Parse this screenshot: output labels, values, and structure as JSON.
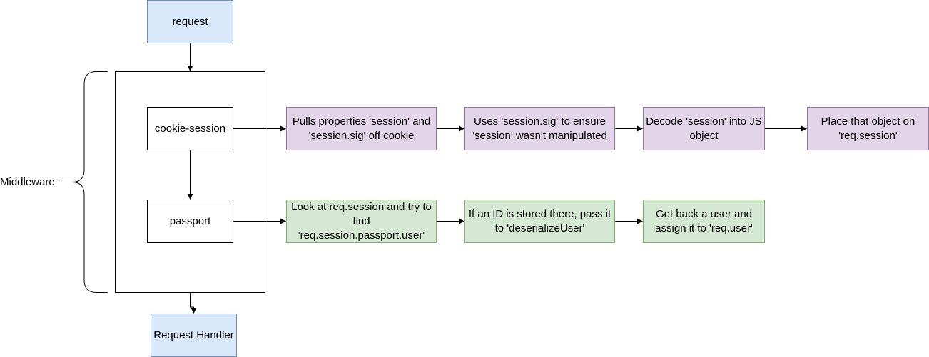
{
  "nodes": {
    "request": "request",
    "cookie_session": "cookie-session",
    "passport": "passport",
    "request_handler": "Request Handler",
    "middleware": "Middleware",
    "cookie_steps": [
      "Pulls properties 'session' and 'session.sig' off cookie",
      "Uses 'session.sig' to ensure 'session' wasn't manipulated",
      "Decode 'session' into JS object",
      "Place that object on 'req.session'"
    ],
    "passport_steps": [
      "Look at req.session and try to find 'req.session.passport.user'",
      "If an ID is stored there, pass it to 'deserializeUser'",
      "Get back a user and assign it to 'req.user'"
    ]
  },
  "colors": {
    "blue_fill": "#dae8fc",
    "blue_stroke": "#6c8ebf",
    "purple_fill": "#e1d5e7",
    "purple_stroke": "#9673a6",
    "green_fill": "#d5e8d4",
    "green_stroke": "#82b366"
  }
}
